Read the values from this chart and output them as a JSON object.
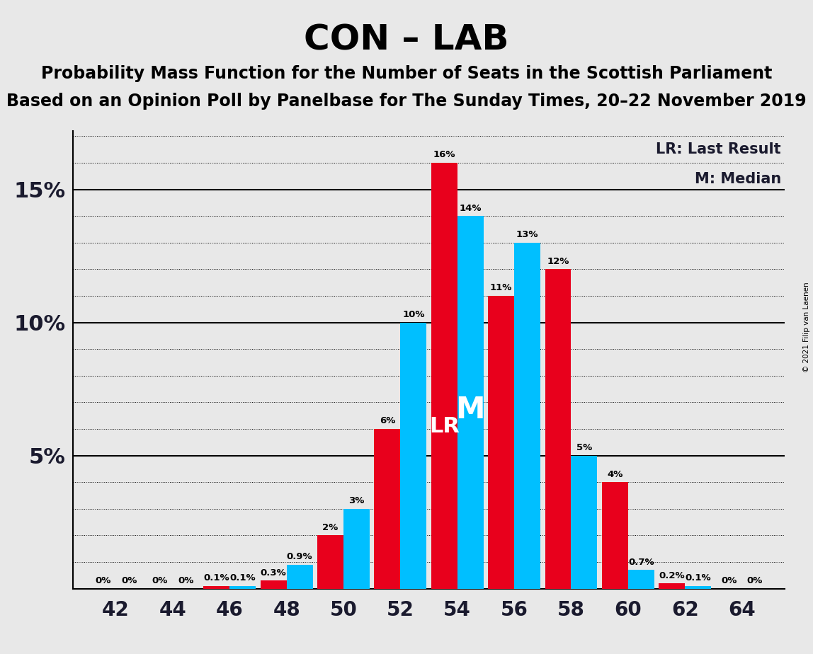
{
  "title": "CON – LAB",
  "subtitle1": "Probability Mass Function for the Number of Seats in the Scottish Parliament",
  "subtitle2": "Based on an Opinion Poll by Panelbase for The Sunday Times, 20–22 November 2019",
  "copyright": "© 2021 Filip van Laenen",
  "legend_lr": "LR: Last Result",
  "legend_m": "M: Median",
  "seats": [
    42,
    44,
    46,
    48,
    50,
    52,
    54,
    56,
    58,
    60,
    62,
    64
  ],
  "red_values": [
    0.0,
    0.0,
    0.1,
    0.3,
    2.0,
    6.0,
    16.0,
    11.0,
    12.0,
    4.0,
    0.2,
    0.0
  ],
  "blue_values": [
    0.0,
    0.0,
    0.1,
    0.9,
    3.0,
    10.0,
    14.0,
    13.0,
    5.0,
    0.7,
    0.1,
    0.0
  ],
  "red_labels": [
    "0%",
    "0%",
    "0.1%",
    "0.3%",
    "2%",
    "6%",
    "16%",
    "11%",
    "12%",
    "4%",
    "0.2%",
    "0%"
  ],
  "blue_labels": [
    "0%",
    "0%",
    "0.1%",
    "0.9%",
    "3%",
    "10%",
    "14%",
    "13%",
    "5%",
    "0.7%",
    "0.1%",
    "0%"
  ],
  "blue_color": "#00BFFF",
  "red_color": "#E8001C",
  "background_color": "#E8E8E8",
  "ylim": [
    0,
    17.2
  ],
  "median_seat": 54,
  "lr_seat": 54,
  "title_fontsize": 36,
  "subtitle_fontsize": 17,
  "bar_width": 0.46
}
